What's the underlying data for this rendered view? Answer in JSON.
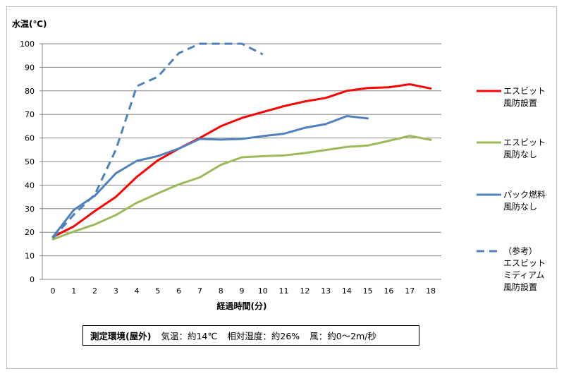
{
  "chart_data": {
    "type": "line",
    "ylabel": "水温(℃)",
    "xlabel": "経過時間(分)",
    "ylim": [
      0,
      100
    ],
    "xlim": [
      0,
      18
    ],
    "yticks": [
      0,
      10,
      20,
      30,
      40,
      50,
      60,
      70,
      80,
      90,
      100
    ],
    "xticks": [
      0,
      1,
      2,
      3,
      4,
      5,
      6,
      7,
      8,
      9,
      10,
      11,
      12,
      13,
      14,
      15,
      16,
      17,
      18
    ],
    "grid": "horizontal",
    "legend_position": "right",
    "series": [
      {
        "name": "エスビット\n風防設置",
        "legend_lines": [
          "エスビット",
          "風防設置"
        ],
        "color": "#ff0000",
        "dash": "solid",
        "x": [
          0,
          1,
          2,
          3,
          4,
          5,
          6,
          7,
          8,
          9,
          10,
          11,
          12,
          13,
          14,
          15,
          16,
          17,
          18
        ],
        "y": [
          18,
          22.5,
          29,
          35,
          43.5,
          50.5,
          55.5,
          60,
          65,
          68.5,
          71,
          73.5,
          75.5,
          77,
          80,
          81.2,
          81.5,
          82.8,
          81
        ]
      },
      {
        "name": "エスビット\n風防なし",
        "legend_lines": [
          "エスビット",
          "風防なし"
        ],
        "color": "#9bbb59",
        "dash": "solid",
        "x": [
          0,
          1,
          2,
          3,
          4,
          5,
          6,
          7,
          8,
          9,
          10,
          11,
          12,
          13,
          14,
          15,
          16,
          17,
          18
        ],
        "y": [
          17,
          20.3,
          23.3,
          27.3,
          32.5,
          36.5,
          40.3,
          43.3,
          48.6,
          51.8,
          52.3,
          52.6,
          53.6,
          54.9,
          56.2,
          56.8,
          58.8,
          60.9,
          59.2
        ]
      },
      {
        "name": "パック燃料\n風防なし",
        "legend_lines": [
          "パック燃料",
          "風防なし"
        ],
        "color": "#4f81bd",
        "dash": "solid",
        "x": [
          0,
          1,
          2,
          3,
          4,
          5,
          6,
          7,
          8,
          9,
          10,
          11,
          12,
          13,
          14,
          15
        ],
        "y": [
          18,
          29.5,
          35.5,
          45,
          50.3,
          52.3,
          55.5,
          59.6,
          59.3,
          59.6,
          60.8,
          61.8,
          64.3,
          65.9,
          69.3,
          68.3
        ]
      },
      {
        "name": "（参考）\nエスビット\nミディアム\n風防設置",
        "legend_lines": [
          "（参考）",
          "エスビット",
          "ミディアム",
          "風防設置"
        ],
        "color": "#4f81bd",
        "dash": "dashed",
        "x": [
          0,
          1,
          2,
          3,
          4,
          5,
          6,
          7,
          8,
          9,
          10
        ],
        "y": [
          17.5,
          27.5,
          36,
          55,
          82,
          86,
          96,
          100,
          100,
          100,
          95.5
        ]
      }
    ]
  },
  "environment": {
    "heading": "測定環境(屋外)",
    "temperature": "気温：約14℃",
    "humidity": "相対湿度：約26%",
    "wind": "風：約0～2m/秒"
  }
}
